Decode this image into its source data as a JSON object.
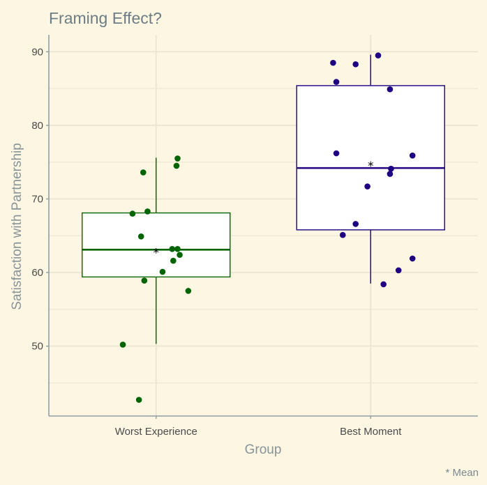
{
  "chart_data": {
    "type": "box",
    "title": "Framing Effect?",
    "xlabel": "Group",
    "ylabel": "Satisfaction with Partnership",
    "caption": "* Mean",
    "mean_marker": "*",
    "ylim": [
      40.5,
      92.3
    ],
    "y_ticks": [
      50,
      60,
      70,
      80,
      90
    ],
    "y_tick_labels": [
      "50",
      "60",
      "70",
      "80",
      "90"
    ],
    "grid": true,
    "colors": {
      "background": "#fcf6e3",
      "grid": "#ece6d2",
      "axis": "#8f9ea4"
    },
    "groups": [
      {
        "name": "Worst Experience",
        "color": "#006400",
        "whisker_low": 50.3,
        "q1": 59.4,
        "median": 63.1,
        "q3": 68.1,
        "whisker_high": 75.6,
        "mean": 63.0,
        "points": [
          [
            -0.31,
            50.2
          ],
          [
            -0.16,
            42.7
          ],
          [
            -0.12,
            73.6
          ],
          [
            -0.22,
            68.0
          ],
          [
            -0.08,
            68.3
          ],
          [
            -0.14,
            64.9
          ],
          [
            -0.11,
            58.9
          ],
          [
            0.06,
            60.1
          ],
          [
            0.15,
            63.2
          ],
          [
            0.16,
            61.6
          ],
          [
            0.2,
            63.2
          ],
          [
            0.22,
            62.4
          ],
          [
            0.19,
            74.5
          ],
          [
            0.2,
            75.5
          ],
          [
            0.3,
            57.5
          ]
        ]
      },
      {
        "name": "Best Moment",
        "color": "#1f0082",
        "whisker_low": 58.5,
        "q1": 65.8,
        "median": 74.2,
        "q3": 85.4,
        "whisker_high": 89.6,
        "mean": 74.8,
        "points": [
          [
            -0.35,
            88.5
          ],
          [
            -0.32,
            85.9
          ],
          [
            -0.32,
            76.2
          ],
          [
            -0.26,
            65.1
          ],
          [
            -0.14,
            88.3
          ],
          [
            -0.14,
            66.6
          ],
          [
            -0.03,
            71.7
          ],
          [
            0.07,
            89.5
          ],
          [
            0.12,
            58.4
          ],
          [
            0.18,
            84.9
          ],
          [
            0.19,
            74.1
          ],
          [
            0.18,
            73.4
          ],
          [
            0.26,
            60.3
          ],
          [
            0.39,
            61.9
          ],
          [
            0.39,
            75.9
          ]
        ]
      }
    ]
  }
}
